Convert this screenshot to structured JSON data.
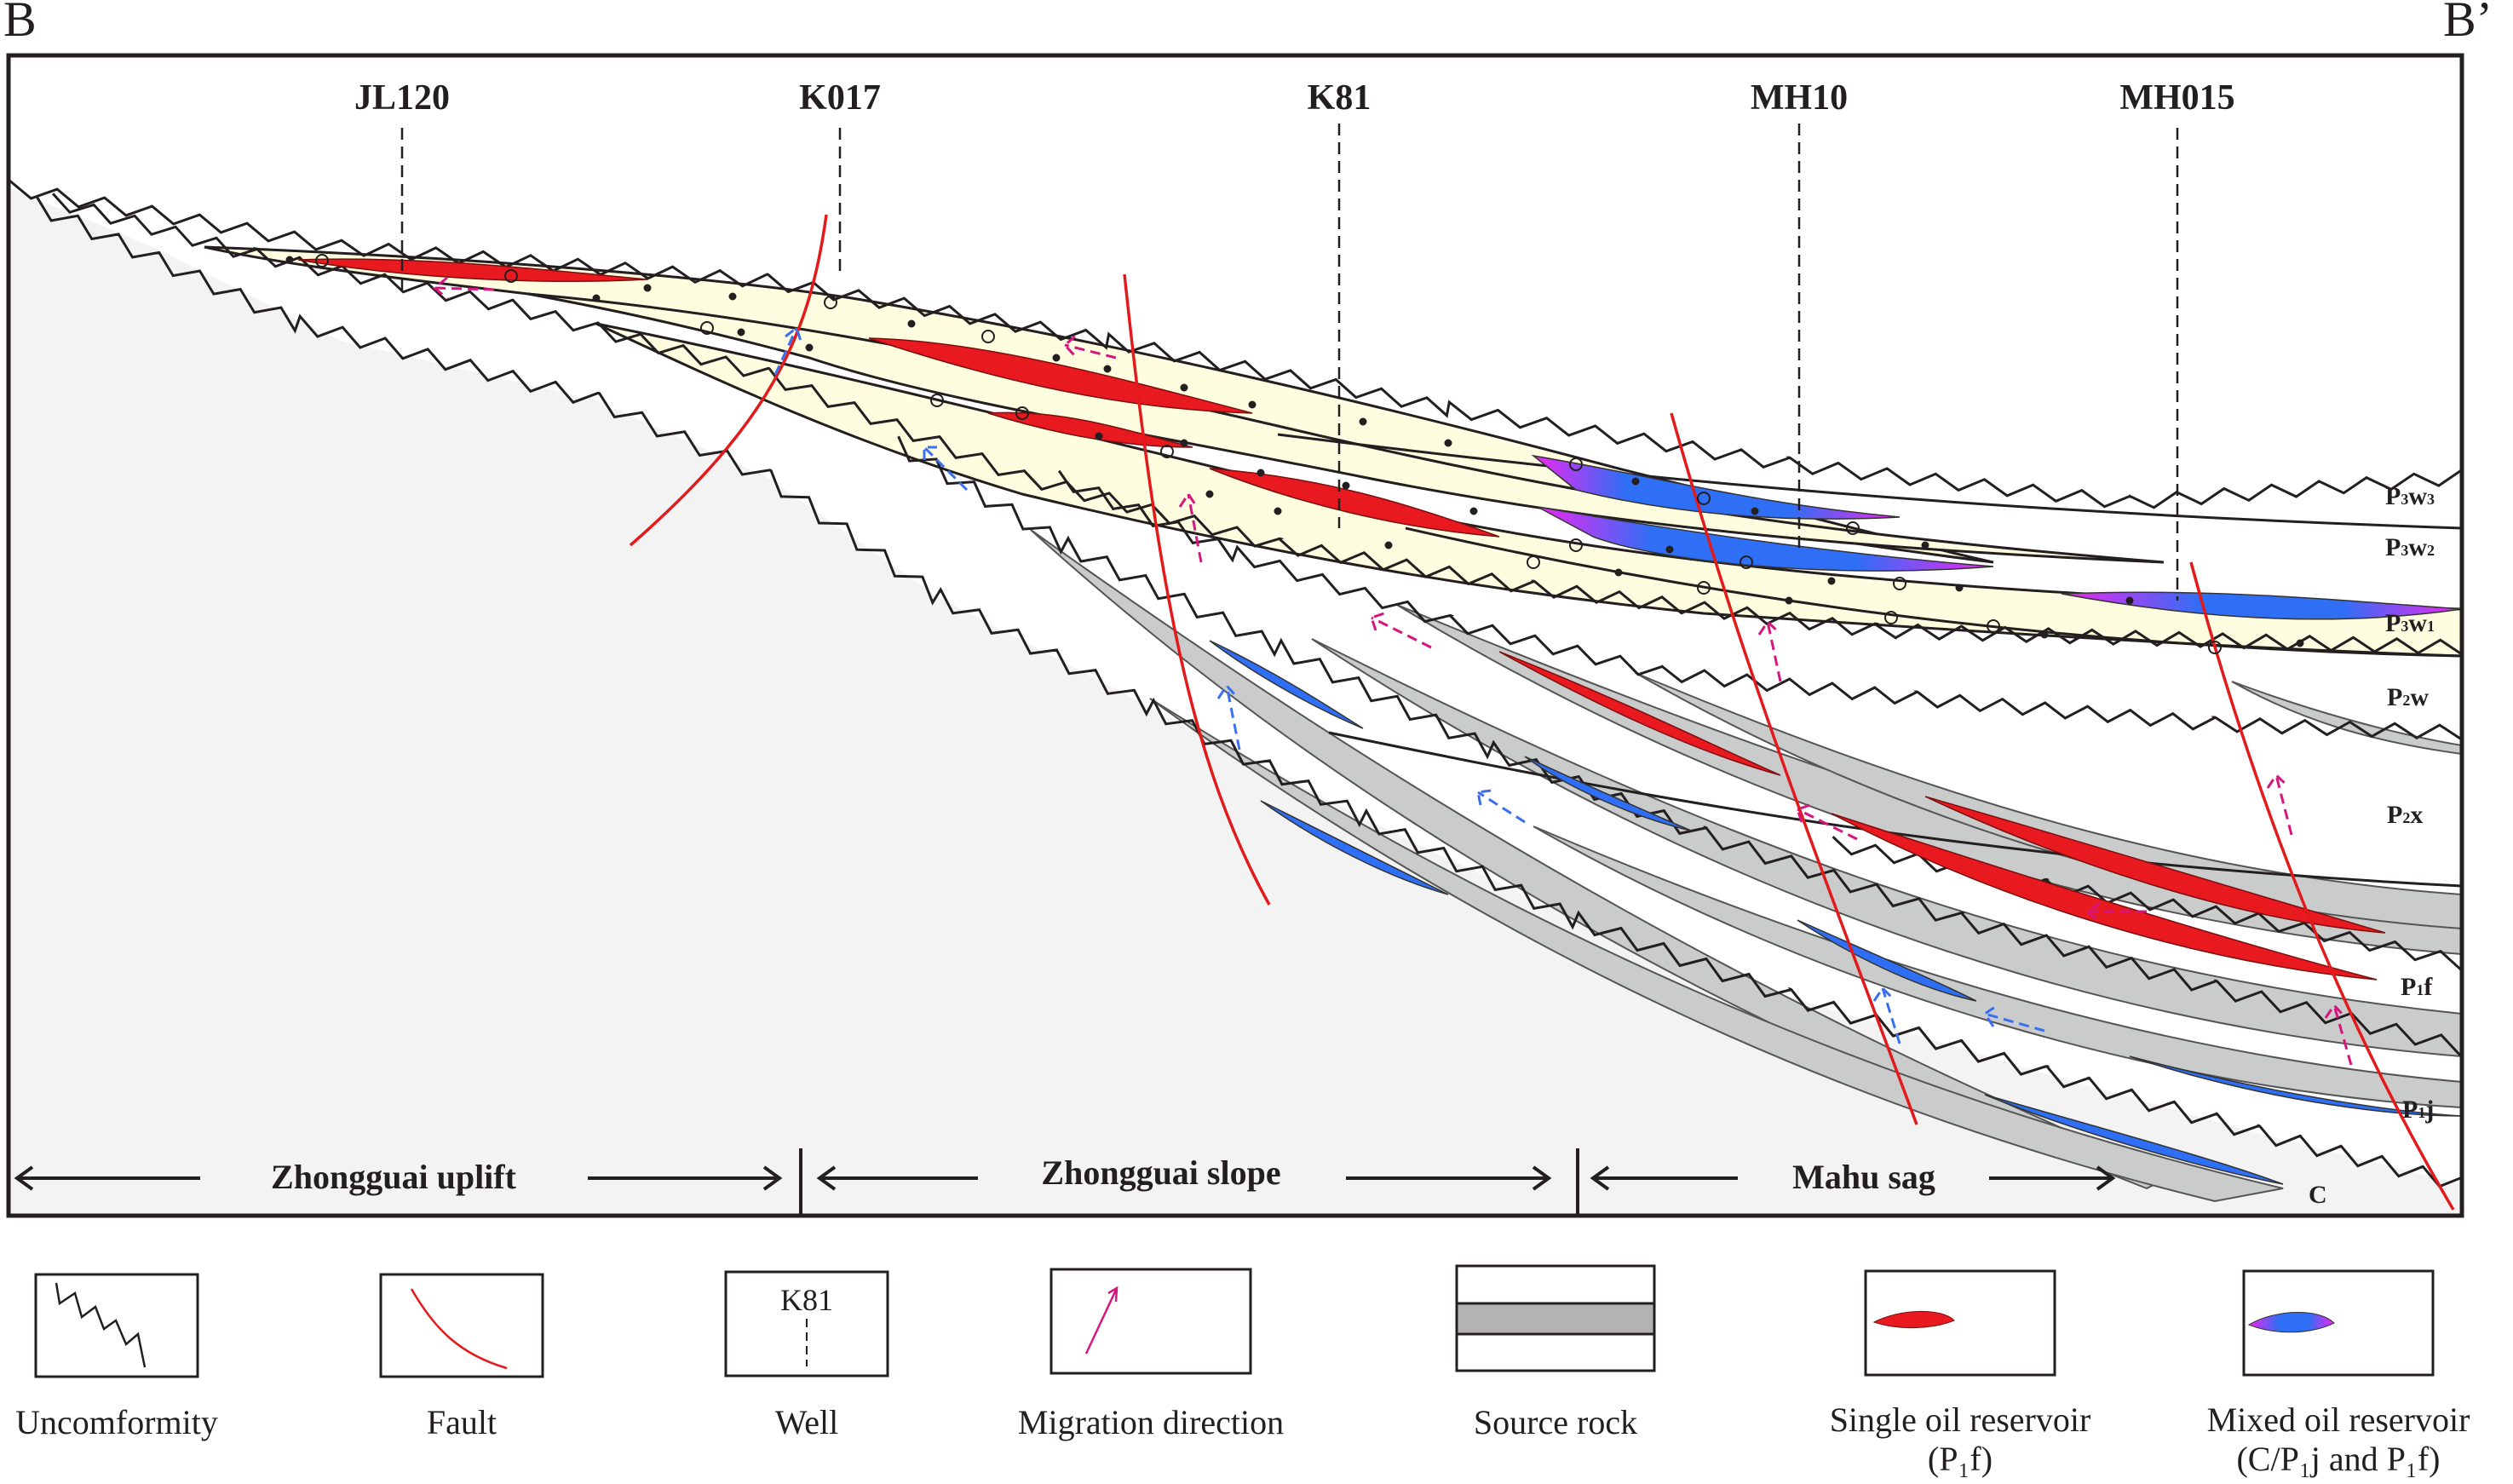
{
  "section": {
    "start_label": "B",
    "end_label": "B’"
  },
  "wells": [
    {
      "name": "JL120"
    },
    {
      "name": "K017"
    },
    {
      "name": "K81"
    },
    {
      "name": "MH10"
    },
    {
      "name": "MH015"
    }
  ],
  "formations": [
    {
      "id": "P3w3",
      "main": "P",
      "sub1": "3",
      "mid": "w",
      "sub2": "3"
    },
    {
      "id": "P3w2",
      "main": "P",
      "sub1": "3",
      "mid": "w",
      "sub2": "2"
    },
    {
      "id": "P3w1",
      "main": "P",
      "sub1": "3",
      "mid": "w",
      "sub2": "1"
    },
    {
      "id": "P2w",
      "main": "P",
      "sub1": "2",
      "mid": "w",
      "sub2": ""
    },
    {
      "id": "P2x",
      "main": "P",
      "sub1": "2",
      "mid": "x",
      "sub2": ""
    },
    {
      "id": "P1f",
      "main": "P",
      "sub1": "1",
      "mid": "f",
      "sub2": ""
    },
    {
      "id": "P1j",
      "main": "P",
      "sub1": "1",
      "mid": "j",
      "sub2": ""
    },
    {
      "id": "C",
      "main": "C",
      "sub1": "",
      "mid": "",
      "sub2": ""
    }
  ],
  "zones": [
    {
      "name": "Zhongguai uplift"
    },
    {
      "name": "Zhongguai slope"
    },
    {
      "name": "Mahu sag"
    }
  ],
  "legend": [
    {
      "id": "unconformity",
      "label": "Uncomformity",
      "label2": ""
    },
    {
      "id": "fault",
      "label": "Fault",
      "label2": ""
    },
    {
      "id": "well",
      "label": "Well",
      "label2": "",
      "sample": "K81"
    },
    {
      "id": "migration",
      "label": "Migration direction",
      "label2": ""
    },
    {
      "id": "source-rock",
      "label": "Source rock",
      "label2": ""
    },
    {
      "id": "single-oil",
      "label": "Single oil reservoir",
      "label2": "(P₁f)"
    },
    {
      "id": "mixed-oil",
      "label": "Mixed oil reservoir",
      "label2": "(C/P₁j and P₁f)"
    }
  ],
  "colors": {
    "basement": "#f3f3f3",
    "sandstone": "#fffde0",
    "source_rock": "#cacbcb",
    "single_oil": "#e8191f",
    "mixed_oil_core": "#2f6ff5",
    "mixed_oil_edge": "#f026f0",
    "fault": "#e31a1c",
    "migration_single": "#d6157f",
    "migration_mixed": "#3a6ff0",
    "line": "#231f20"
  }
}
